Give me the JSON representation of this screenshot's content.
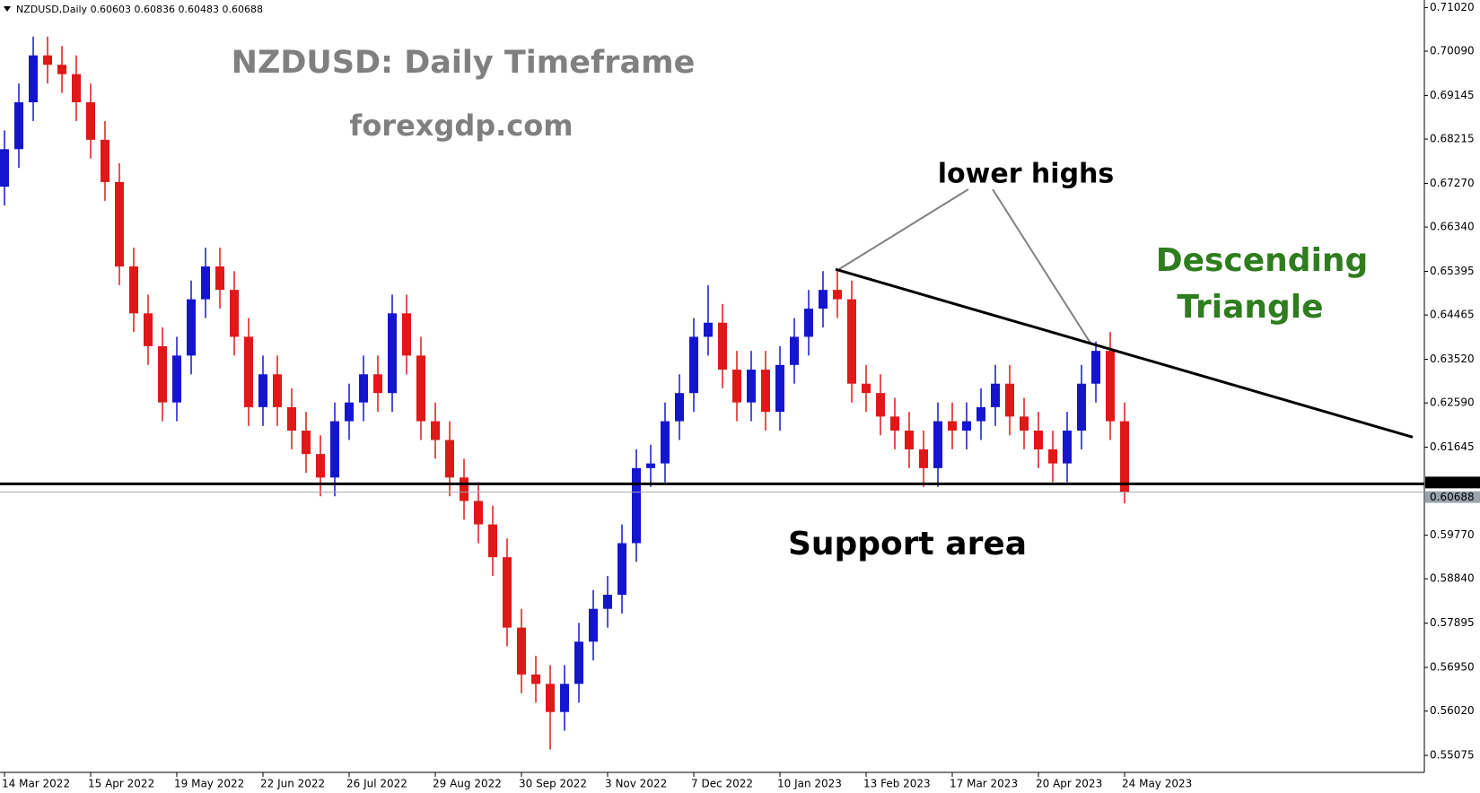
{
  "chart_data": {
    "type": "candlestick",
    "header": "NZDUSD,Daily  0.60603 0.60836 0.60483 0.60688",
    "title": "NZDUSD: Daily Timeframe",
    "subtitle": "forexgdp.com",
    "annotations": {
      "lower_highs": "lower highs",
      "pattern_line1": "Descending",
      "pattern_line2": "Triangle",
      "support": "Support area"
    },
    "up_color": "#1515d0",
    "down_color": "#e01818",
    "categories": [
      "14 Mar 2022",
      null,
      null,
      null,
      null,
      null,
      "15 Apr 2022",
      null,
      null,
      null,
      null,
      null,
      "19 May 2022",
      null,
      null,
      null,
      null,
      null,
      "22 Jun 2022",
      null,
      null,
      null,
      null,
      null,
      "26 Jul 2022",
      null,
      null,
      null,
      null,
      null,
      "29 Aug 2022",
      null,
      null,
      null,
      null,
      null,
      "30 Sep 2022",
      null,
      null,
      null,
      null,
      null,
      "3 Nov 2022",
      null,
      null,
      null,
      null,
      null,
      "7 Dec 2022",
      null,
      null,
      null,
      null,
      null,
      "10 Jan 2023",
      null,
      null,
      null,
      null,
      null,
      "13 Feb 2023",
      null,
      null,
      null,
      null,
      null,
      "17 Mar 2023",
      null,
      null,
      null,
      null,
      null,
      "20 Apr 2023",
      null,
      null,
      null,
      null,
      null,
      "24 May 2023"
    ],
    "open": [
      0.672,
      0.68,
      0.69,
      0.7,
      0.698,
      0.696,
      0.69,
      0.682,
      0.673,
      0.655,
      0.645,
      0.638,
      0.626,
      0.636,
      0.648,
      0.655,
      0.65,
      0.64,
      0.625,
      0.632,
      0.625,
      0.62,
      0.615,
      0.61,
      0.622,
      0.626,
      0.632,
      0.628,
      0.645,
      0.636,
      0.622,
      0.618,
      0.61,
      0.605,
      0.6,
      0.593,
      0.578,
      0.568,
      0.566,
      0.56,
      0.566,
      0.575,
      0.582,
      0.585,
      0.596,
      0.612,
      0.613,
      0.622,
      0.628,
      0.64,
      0.643,
      0.633,
      0.626,
      0.633,
      0.624,
      0.634,
      0.64,
      0.646,
      0.65,
      0.648,
      0.63,
      0.628,
      0.623,
      0.62,
      0.616,
      0.612,
      0.622,
      0.62,
      0.622,
      0.625,
      0.63,
      0.623,
      0.62,
      0.616,
      0.613,
      0.62,
      0.63,
      0.637,
      0.622
    ],
    "high": [
      0.684,
      0.694,
      0.704,
      0.704,
      0.702,
      0.7,
      0.694,
      0.686,
      0.677,
      0.659,
      0.649,
      0.642,
      0.64,
      0.652,
      0.659,
      0.659,
      0.654,
      0.644,
      0.636,
      0.636,
      0.629,
      0.624,
      0.619,
      0.626,
      0.63,
      0.636,
      0.636,
      0.649,
      0.649,
      0.64,
      0.626,
      0.622,
      0.614,
      0.609,
      0.604,
      0.597,
      0.582,
      0.572,
      0.57,
      0.57,
      0.579,
      0.586,
      0.589,
      0.6,
      0.616,
      0.617,
      0.626,
      0.632,
      0.644,
      0.651,
      0.647,
      0.637,
      0.637,
      0.637,
      0.638,
      0.644,
      0.65,
      0.654,
      0.654,
      0.652,
      0.634,
      0.632,
      0.627,
      0.624,
      0.62,
      0.626,
      0.626,
      0.626,
      0.629,
      0.634,
      0.634,
      0.627,
      0.624,
      0.62,
      0.624,
      0.634,
      0.639,
      0.641,
      0.626
    ],
    "low": [
      0.668,
      0.676,
      0.686,
      0.694,
      0.692,
      0.686,
      0.678,
      0.669,
      0.651,
      0.641,
      0.634,
      0.622,
      0.622,
      0.632,
      0.644,
      0.646,
      0.636,
      0.621,
      0.621,
      0.621,
      0.616,
      0.611,
      0.606,
      0.606,
      0.618,
      0.622,
      0.624,
      0.624,
      0.632,
      0.618,
      0.614,
      0.606,
      0.601,
      0.596,
      0.589,
      0.574,
      0.564,
      0.562,
      0.552,
      0.556,
      0.562,
      0.571,
      0.578,
      0.581,
      0.592,
      0.608,
      0.609,
      0.618,
      0.624,
      0.636,
      0.629,
      0.622,
      0.622,
      0.62,
      0.62,
      0.63,
      0.636,
      0.642,
      0.644,
      0.626,
      0.624,
      0.619,
      0.616,
      0.612,
      0.608,
      0.608,
      0.616,
      0.616,
      0.618,
      0.621,
      0.619,
      0.616,
      0.612,
      0.609,
      0.609,
      0.616,
      0.626,
      0.618,
      0.6045
    ],
    "close": [
      0.68,
      0.69,
      0.7,
      0.698,
      0.696,
      0.69,
      0.682,
      0.673,
      0.655,
      0.645,
      0.638,
      0.626,
      0.636,
      0.648,
      0.655,
      0.65,
      0.64,
      0.625,
      0.632,
      0.625,
      0.62,
      0.615,
      0.61,
      0.622,
      0.626,
      0.632,
      0.628,
      0.645,
      0.636,
      0.622,
      0.618,
      0.61,
      0.605,
      0.6,
      0.593,
      0.578,
      0.568,
      0.566,
      0.56,
      0.566,
      0.575,
      0.582,
      0.585,
      0.596,
      0.612,
      0.613,
      0.622,
      0.628,
      0.64,
      0.643,
      0.633,
      0.626,
      0.633,
      0.624,
      0.634,
      0.64,
      0.646,
      0.65,
      0.648,
      0.63,
      0.628,
      0.623,
      0.62,
      0.616,
      0.612,
      0.622,
      0.62,
      0.622,
      0.625,
      0.63,
      0.623,
      0.62,
      0.616,
      0.613,
      0.62,
      0.63,
      0.637,
      0.622,
      0.60688
    ],
    "ylim": [
      0.54713,
      0.71181
    ],
    "yticks": [
      {
        "value": 0.7102,
        "label": "0.71020"
      },
      {
        "value": 0.7009,
        "label": "0.70090"
      },
      {
        "value": 0.69145,
        "label": "0.69145"
      },
      {
        "value": 0.68215,
        "label": "0.68215"
      },
      {
        "value": 0.6727,
        "label": "0.67270"
      },
      {
        "value": 0.6634,
        "label": "0.66340"
      },
      {
        "value": 0.65395,
        "label": "0.65395"
      },
      {
        "value": 0.64465,
        "label": "0.64465"
      },
      {
        "value": 0.6352,
        "label": "0.63520"
      },
      {
        "value": 0.6259,
        "label": "0.62590"
      },
      {
        "value": 0.61645,
        "label": "0.61645"
      },
      {
        "value": 0.5977,
        "label": "0.59770"
      },
      {
        "value": 0.5884,
        "label": "0.58840"
      },
      {
        "value": 0.57895,
        "label": "0.57895"
      },
      {
        "value": 0.5695,
        "label": "0.56950"
      },
      {
        "value": 0.5602,
        "label": "0.56020"
      },
      {
        "value": 0.55075,
        "label": "0.55075"
      }
    ],
    "support_level": {
      "value": 0.60865,
      "label": "0.60865"
    },
    "bid_level": {
      "value": 0.60688,
      "label": "0.60688"
    },
    "trendline": [
      0.6544,
      0.6186
    ]
  }
}
